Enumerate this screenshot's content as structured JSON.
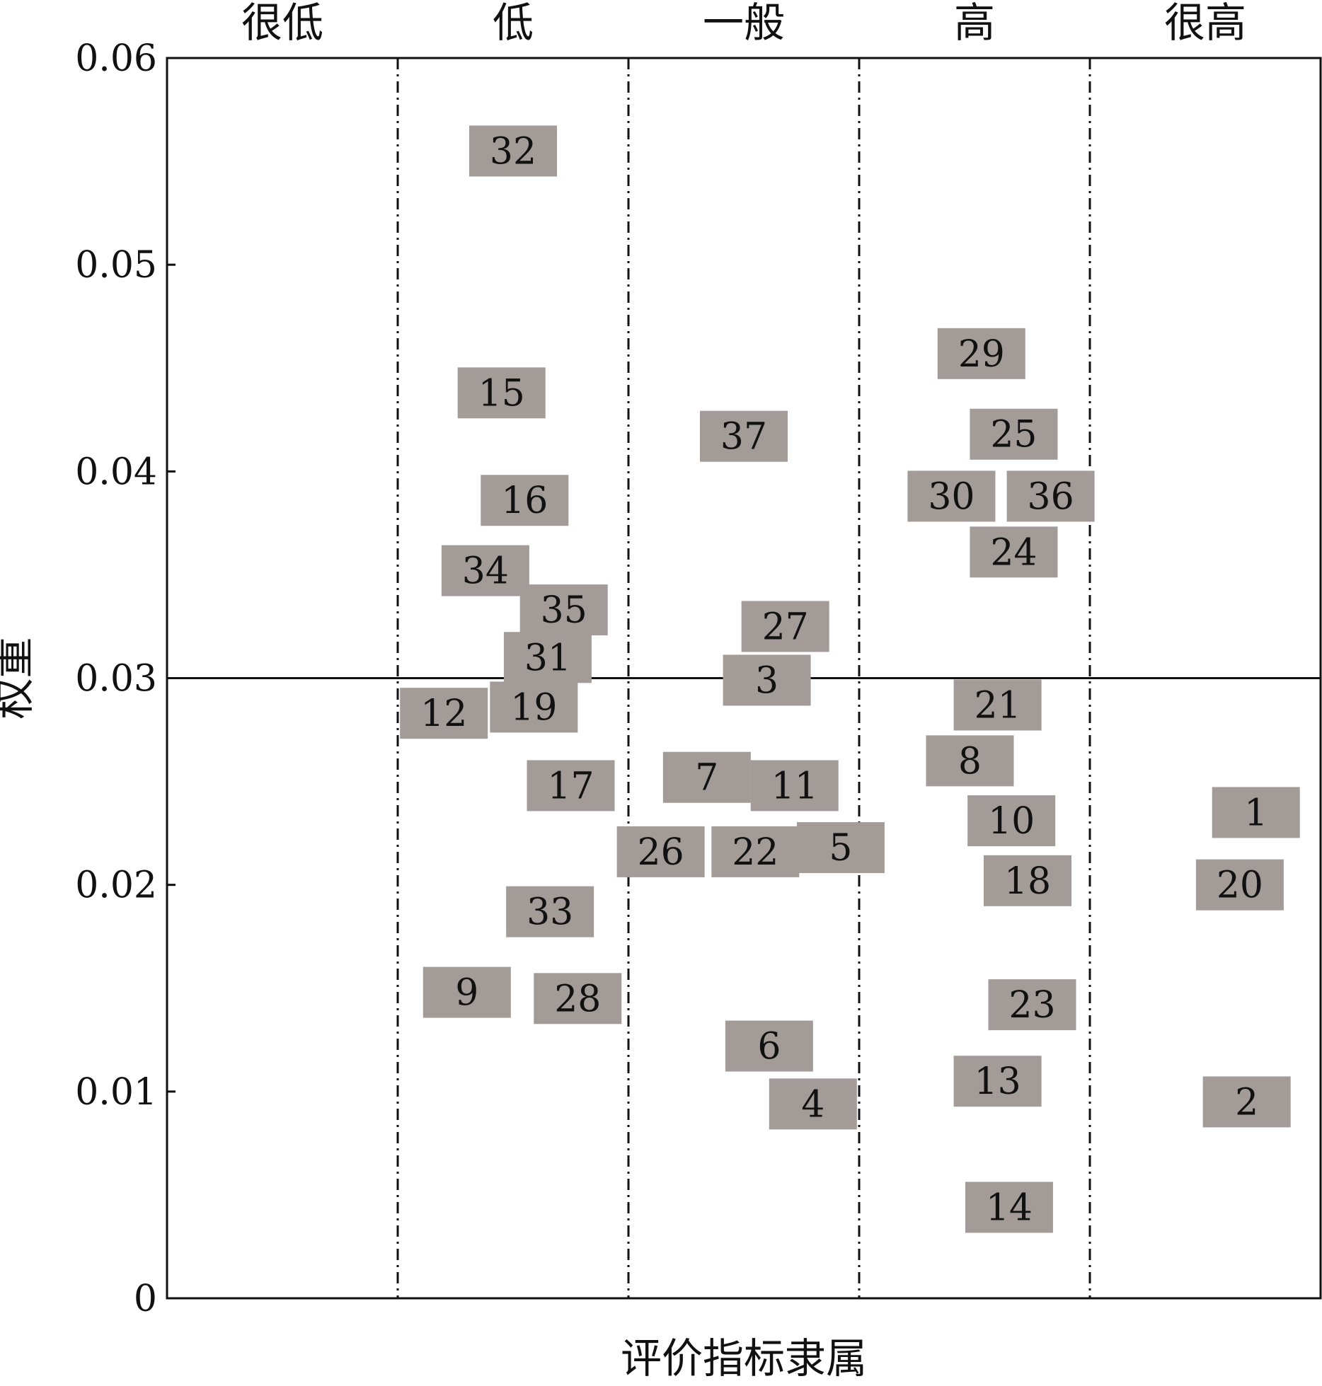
{
  "chart_data": {
    "type": "scatter",
    "title": "",
    "xlabel": "评价指标隶属",
    "ylabel": "权重",
    "categories": [
      "很低",
      "低",
      "一般",
      "高",
      "很高"
    ],
    "ylim": [
      0,
      0.06
    ],
    "yticks": [
      "0",
      "0.01",
      "0.02",
      "0.03",
      "0.04",
      "0.05",
      "0.06"
    ],
    "threshold": 0.03,
    "grid": false,
    "legend": "none",
    "colors": {
      "marker": "#a29b98",
      "line": "#111111"
    },
    "points": [
      {
        "label": "32",
        "x": 1.5,
        "y": 0.0555
      },
      {
        "label": "15",
        "x": 1.45,
        "y": 0.0438
      },
      {
        "label": "16",
        "x": 1.55,
        "y": 0.0386
      },
      {
        "label": "34",
        "x": 1.38,
        "y": 0.0352
      },
      {
        "label": "35",
        "x": 1.72,
        "y": 0.0333
      },
      {
        "label": "31",
        "x": 1.65,
        "y": 0.031
      },
      {
        "label": "12",
        "x": 1.2,
        "y": 0.0283
      },
      {
        "label": "19",
        "x": 1.59,
        "y": 0.0286
      },
      {
        "label": "17",
        "x": 1.75,
        "y": 0.0248
      },
      {
        "label": "33",
        "x": 1.66,
        "y": 0.0187
      },
      {
        "label": "9",
        "x": 1.3,
        "y": 0.0148
      },
      {
        "label": "28",
        "x": 1.78,
        "y": 0.0145
      },
      {
        "label": "37",
        "x": 2.5,
        "y": 0.0417
      },
      {
        "label": "27",
        "x": 2.68,
        "y": 0.0325
      },
      {
        "label": "3",
        "x": 2.6,
        "y": 0.0299
      },
      {
        "label": "7",
        "x": 2.34,
        "y": 0.0252
      },
      {
        "label": "11",
        "x": 2.72,
        "y": 0.0248
      },
      {
        "label": "26",
        "x": 2.14,
        "y": 0.0216
      },
      {
        "label": "22",
        "x": 2.55,
        "y": 0.0216
      },
      {
        "label": "5",
        "x": 2.92,
        "y": 0.0218
      },
      {
        "label": "6",
        "x": 2.61,
        "y": 0.0122
      },
      {
        "label": "4",
        "x": 2.8,
        "y": 0.0094
      },
      {
        "label": "29",
        "x": 3.53,
        "y": 0.0457
      },
      {
        "label": "25",
        "x": 3.67,
        "y": 0.0418
      },
      {
        "label": "30",
        "x": 3.4,
        "y": 0.0388
      },
      {
        "label": "36",
        "x": 3.83,
        "y": 0.0388
      },
      {
        "label": "24",
        "x": 3.67,
        "y": 0.0361
      },
      {
        "label": "21",
        "x": 3.6,
        "y": 0.0287
      },
      {
        "label": "8",
        "x": 3.48,
        "y": 0.026
      },
      {
        "label": "10",
        "x": 3.66,
        "y": 0.0231
      },
      {
        "label": "18",
        "x": 3.73,
        "y": 0.0202
      },
      {
        "label": "23",
        "x": 3.75,
        "y": 0.0142
      },
      {
        "label": "13",
        "x": 3.6,
        "y": 0.0105
      },
      {
        "label": "14",
        "x": 3.65,
        "y": 0.0044
      },
      {
        "label": "1",
        "x": 4.72,
        "y": 0.0235
      },
      {
        "label": "20",
        "x": 4.65,
        "y": 0.02
      },
      {
        "label": "2",
        "x": 4.68,
        "y": 0.0095
      }
    ]
  }
}
